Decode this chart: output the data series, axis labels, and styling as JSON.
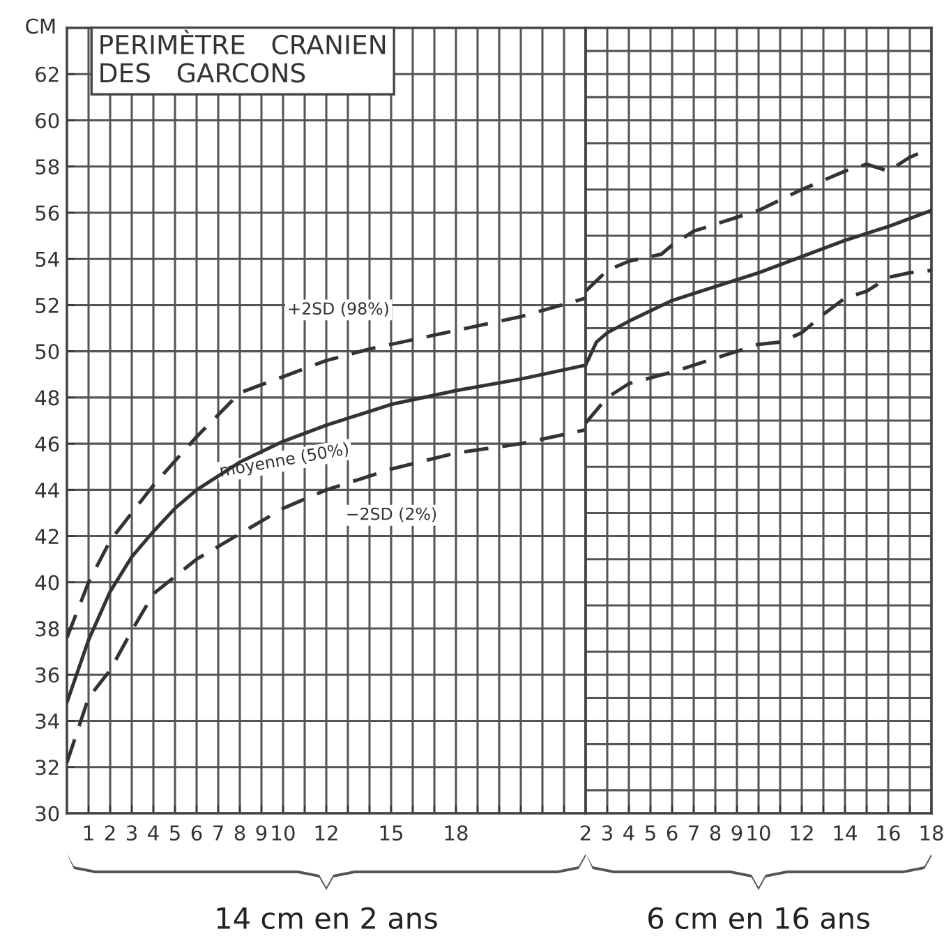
{
  "chart_data": [
    {
      "type": "line",
      "title": "PERIMÈTRE   CRANIEN\nDES   GARCONS",
      "ylabel": "CM",
      "xlim": [
        0,
        24
      ],
      "ylim": [
        30,
        64
      ],
      "xticks": [
        1,
        2,
        3,
        4,
        5,
        6,
        7,
        8,
        9,
        10,
        {
          "value": 11,
          "label": null
        },
        12,
        {
          "value": 13,
          "label": null
        },
        {
          "value": 14,
          "label": null
        },
        15,
        {
          "value": 16,
          "label": null
        },
        {
          "value": 17,
          "label": null
        },
        18,
        {
          "value": 19,
          "label": null
        },
        {
          "value": 20,
          "label": null
        },
        {
          "value": 21,
          "label": null
        },
        {
          "value": 22,
          "label": null
        },
        {
          "value": 23,
          "label": null
        }
      ],
      "yticks": [
        30,
        32,
        34,
        36,
        38,
        40,
        42,
        44,
        46,
        48,
        50,
        52,
        54,
        56,
        58,
        60,
        62
      ],
      "grid": true,
      "series": [
        {
          "name": "+2SD (98%)",
          "color": "#333333",
          "line_style": "dashed",
          "x": [
            0,
            1,
            2,
            3,
            4,
            6,
            8,
            10,
            12,
            14,
            16,
            18,
            21,
            24
          ],
          "values": [
            37.6,
            40,
            41.8,
            43,
            44.2,
            46.3,
            48.2,
            48.9,
            49.6,
            50.1,
            50.5,
            50.9,
            51.5,
            52.3
          ]
        },
        {
          "name": "moyenne (50%)",
          "color": "#333333",
          "line_style": "solid",
          "x": [
            0,
            1,
            2,
            3,
            4,
            5,
            6,
            8,
            10,
            12,
            15,
            18,
            21,
            24
          ],
          "values": [
            34.8,
            37.5,
            39.6,
            41.1,
            42.2,
            43.2,
            44.0,
            45.2,
            46.1,
            46.8,
            47.7,
            48.3,
            48.8,
            49.4
          ]
        },
        {
          "name": "−2SD (2%)",
          "color": "#333333",
          "line_style": "dashed",
          "x": [
            0,
            1,
            2,
            3,
            4,
            6,
            8,
            10,
            12,
            15,
            18,
            21,
            24
          ],
          "values": [
            32.2,
            35,
            36.2,
            37.9,
            39.5,
            41,
            42.1,
            43.2,
            44,
            44.9,
            45.6,
            46,
            46.6
          ]
        }
      ],
      "annotations": [
        "14 cm en 2 ans"
      ]
    },
    {
      "type": "line",
      "xlim": [
        2,
        18
      ],
      "ylim": [
        30,
        64
      ],
      "xticks": [
        2,
        3,
        4,
        5,
        6,
        7,
        8,
        9,
        10,
        {
          "value": 11,
          "label": null
        },
        12,
        {
          "value": 13,
          "label": null
        },
        14,
        {
          "value": 15,
          "label": null
        },
        16,
        {
          "value": 17,
          "label": null
        },
        18
      ],
      "yticks": [
        {
          "value": 30,
          "label": null
        },
        {
          "value": 31,
          "label": null
        },
        {
          "value": 32,
          "label": null
        },
        {
          "value": 33,
          "label": null
        },
        {
          "value": 34,
          "label": null
        },
        {
          "value": 35,
          "label": null
        },
        {
          "value": 36,
          "label": null
        },
        {
          "value": 37,
          "label": null
        },
        {
          "value": 38,
          "label": null
        },
        {
          "value": 39,
          "label": null
        },
        {
          "value": 40,
          "label": null
        },
        {
          "value": 41,
          "label": null
        },
        {
          "value": 42,
          "label": null
        },
        {
          "value": 43,
          "label": null
        },
        {
          "value": 44,
          "label": null
        },
        {
          "value": 45,
          "label": null
        },
        {
          "value": 46,
          "label": null
        },
        {
          "value": 47,
          "label": null
        },
        {
          "value": 48,
          "label": null
        },
        {
          "value": 49,
          "label": null
        },
        {
          "value": 50,
          "label": null
        },
        {
          "value": 51,
          "label": null
        },
        {
          "value": 52,
          "label": null
        },
        {
          "value": 53,
          "label": null
        },
        {
          "value": 54,
          "label": null
        },
        {
          "value": 55,
          "label": null
        },
        {
          "value": 56,
          "label": null
        },
        {
          "value": 57,
          "label": null
        },
        {
          "value": 58,
          "label": null
        },
        {
          "value": 59,
          "label": null
        },
        {
          "value": 60,
          "label": null
        },
        {
          "value": 61,
          "label": null
        },
        {
          "value": 62,
          "label": null
        },
        {
          "value": 63,
          "label": null
        }
      ],
      "grid": true,
      "tick_labels": "x",
      "series": [
        {
          "color": "#333333",
          "line_style": "dashed",
          "x": [
            2,
            3,
            4,
            5.5,
            6,
            7,
            8,
            10,
            12,
            14,
            15,
            16,
            17,
            18
          ],
          "values": [
            52.6,
            53.5,
            53.9,
            54.2,
            54.6,
            55.2,
            55.5,
            56.1,
            57.0,
            57.8,
            58.1,
            57.8,
            58.4,
            58.8
          ]
        },
        {
          "color": "#333333",
          "line_style": "solid",
          "x": [
            2,
            2.5,
            3,
            4,
            6,
            8,
            10,
            12,
            14,
            16,
            18
          ],
          "values": [
            49.4,
            50.4,
            50.8,
            51.3,
            52.2,
            52.8,
            53.4,
            54.1,
            54.8,
            55.4,
            56.1
          ]
        },
        {
          "color": "#333333",
          "line_style": "dashed",
          "x": [
            2,
            3,
            4,
            6,
            8,
            10,
            11,
            12,
            13,
            14,
            15,
            16,
            17,
            18
          ],
          "values": [
            46.9,
            48.0,
            48.6,
            49.1,
            49.7,
            50.3,
            50.4,
            50.8,
            51.6,
            52.3,
            52.6,
            53.2,
            53.4,
            53.5
          ]
        }
      ],
      "annotations": [
        "6 cm en 16 ans"
      ]
    }
  ]
}
